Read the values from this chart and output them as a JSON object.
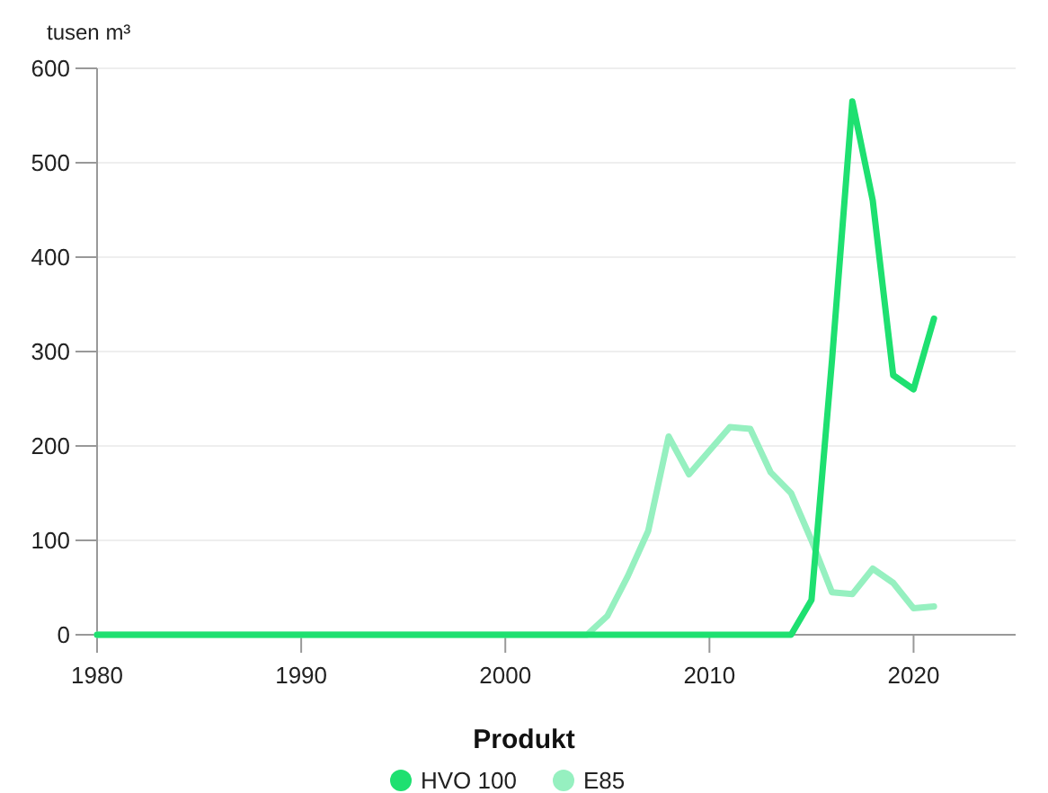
{
  "chart_data": {
    "type": "line",
    "ylabel": "tusen m³",
    "legend_title": "Produkt",
    "legend": "bottom",
    "grid": "y",
    "line_style": "solid",
    "marker": "none",
    "x": [
      1980,
      1981,
      1982,
      1983,
      1984,
      1985,
      1986,
      1987,
      1988,
      1989,
      1990,
      1991,
      1992,
      1993,
      1994,
      1995,
      1996,
      1997,
      1998,
      1999,
      2000,
      2001,
      2002,
      2003,
      2004,
      2005,
      2006,
      2007,
      2008,
      2009,
      2010,
      2011,
      2012,
      2013,
      2014,
      2015,
      2016,
      2017,
      2018,
      2019,
      2020,
      2021
    ],
    "xlim": [
      1980,
      2025
    ],
    "xticks": [
      1980,
      1990,
      2000,
      2010,
      2020
    ],
    "ylim": [
      0,
      600
    ],
    "yticks": [
      0,
      100,
      200,
      300,
      400,
      500,
      600
    ],
    "series": [
      {
        "name": "HVO 100",
        "color": "#1ee070",
        "values": [
          0,
          0,
          0,
          0,
          0,
          0,
          0,
          0,
          0,
          0,
          0,
          0,
          0,
          0,
          0,
          0,
          0,
          0,
          0,
          0,
          0,
          0,
          0,
          0,
          0,
          0,
          0,
          0,
          0,
          0,
          0,
          0,
          0,
          0,
          0,
          37,
          290,
          565,
          460,
          275,
          260,
          335
        ]
      },
      {
        "name": "E85",
        "color": "#96f0c0",
        "values": [
          0,
          0,
          0,
          0,
          0,
          0,
          0,
          0,
          0,
          0,
          0,
          0,
          0,
          0,
          0,
          0,
          0,
          0,
          0,
          0,
          0,
          0,
          0,
          0,
          0,
          20,
          62,
          110,
          210,
          170,
          195,
          220,
          218,
          172,
          150,
          100,
          45,
          43,
          70,
          55,
          28,
          30
        ]
      }
    ]
  }
}
